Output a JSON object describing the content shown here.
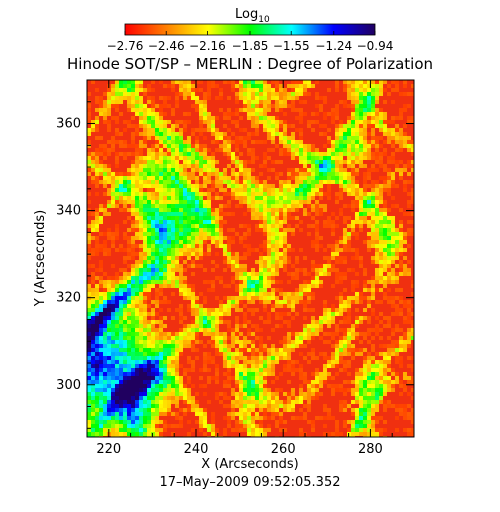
{
  "chart_data": {
    "type": "heatmap",
    "title": "Hinode SOT/SP – MERLIN : Degree of Polarization",
    "timestamp": "17–May–2009 09:52:05.352",
    "xlabel": "X (Arcseconds)",
    "ylabel": "Y (Arcseconds)",
    "xlim": [
      215,
      290
    ],
    "ylim": [
      288,
      370
    ],
    "xticks": [
      "220",
      "240",
      "260",
      "280"
    ],
    "yticks": [
      "300",
      "320",
      "340",
      "360"
    ],
    "xtick_values": [
      220,
      240,
      260,
      280
    ],
    "ytick_values": [
      300,
      320,
      340,
      360
    ],
    "colorbar": {
      "label": "Log",
      "label_sub": "10",
      "tick_labels": [
        "−2.76",
        "−2.46",
        "−2.16",
        "−1.85",
        "−1.55",
        "−1.24",
        "−0.94"
      ],
      "values": [
        -2.76,
        -2.46,
        -2.16,
        -1.85,
        -1.55,
        -1.24,
        -0.94
      ],
      "colormap": [
        "#ff0000",
        "#ff8000",
        "#ffff00",
        "#00ff00",
        "#00ffff",
        "#0000ff",
        "#200060"
      ]
    },
    "legend": "none",
    "grid": false
  }
}
